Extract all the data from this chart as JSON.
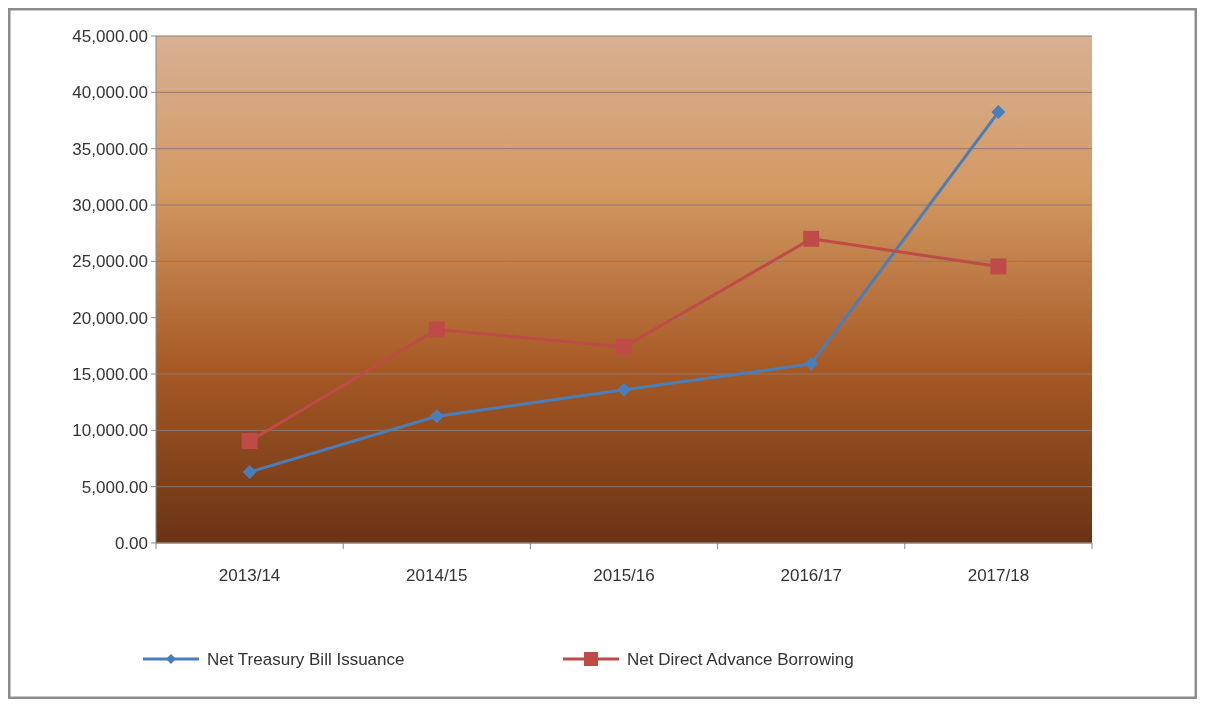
{
  "chart_data": {
    "type": "line",
    "categories": [
      "2013/14",
      "2014/15",
      "2015/16",
      "2016/17",
      "2017/18"
    ],
    "series": [
      {
        "name": "Net Treasury Bill Issuance",
        "color": "#4a7ebb",
        "marker": "diamond",
        "values": [
          6300,
          11250,
          13600,
          15900,
          38250
        ]
      },
      {
        "name": "Net Direct Advance Borrowing",
        "color": "#be4b48",
        "marker": "square",
        "values": [
          9050,
          18950,
          17400,
          27000,
          24550
        ]
      }
    ],
    "ylim": [
      0,
      45000
    ],
    "yticks": [
      {
        "value": 0,
        "label": "0.00"
      },
      {
        "value": 5000,
        "label": "5,000.00"
      },
      {
        "value": 10000,
        "label": "10,000.00"
      },
      {
        "value": 15000,
        "label": "15,000.00"
      },
      {
        "value": 20000,
        "label": "20,000.00"
      },
      {
        "value": 25000,
        "label": "25,000.00"
      },
      {
        "value": 30000,
        "label": "30,000.00"
      },
      {
        "value": 35000,
        "label": "35,000.00"
      },
      {
        "value": 40000,
        "label": "40,000.00"
      },
      {
        "value": 45000,
        "label": "45,000.00"
      }
    ],
    "grid": "y",
    "legend": "bottom"
  }
}
